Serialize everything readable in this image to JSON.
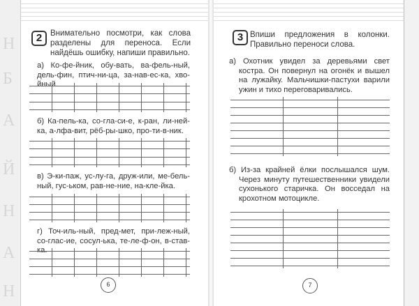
{
  "left_page": {
    "task_number": "2",
    "task_text": "Внимательно посмотри, как слова разделены для переноса. Если найдёшь ошибку, напиши правильно.",
    "items": [
      {
        "text": "а) Ко-фе-йник, обу-вать, ва-фель-ный, дель-фин, птич-ни-ца, за-нав-ес-ка, хво-йный."
      },
      {
        "text": "б) Ка-пель-ка, со-гла-си-е, к-ран, ли-ней-ка, а-лфа-вит, рёб-ры-шко, про-ти-в-ник."
      },
      {
        "text": "в) Э-ки-паж, ус-лу-га, друж-или, ме-бель-ный, гус-ьком, рав-не-ние, на-кле-йка."
      },
      {
        "text": "г) Точ-иль-ный, пред-мет, при-леж-ный, со-глас-ие, сосул-ька, те-ле-ф-он, в-став-ка."
      }
    ],
    "page_number": "6"
  },
  "right_page": {
    "task_number": "3",
    "task_text": "Впиши предложения в колонки. Правильно переноси слова.",
    "items": [
      {
        "text": "а) Охотник увидел за деревьями свет костра. Он повернул на огонёк и вышел на лужайку. Мальчишки-пастухи варили ужин и тихо переговаривались."
      },
      {
        "text": "б) Из-за крайней ёлки послышался шум. Через минуту путешественники увидели сухонького старичка. Он восседал на крохотном мотоцикле."
      }
    ],
    "page_number": "7"
  },
  "decor": {
    "border_letters": [
      "Н",
      "Б",
      "А",
      "Й",
      "Н",
      "А",
      "Н"
    ]
  }
}
